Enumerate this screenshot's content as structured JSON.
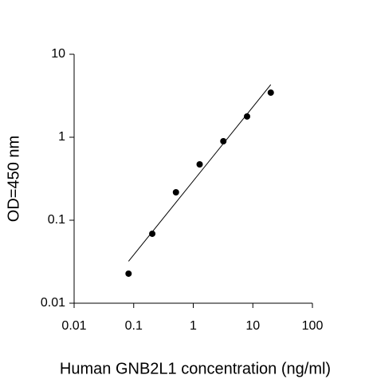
{
  "chart_data": {
    "type": "scatter",
    "xlabel": "Human GNB2L1 concentration (ng/ml)",
    "ylabel": "OD=450 nm",
    "x": [
      0.082,
      0.205,
      0.512,
      1.28,
      3.2,
      8,
      20
    ],
    "values": [
      0.0227,
      0.0687,
      0.217,
      0.471,
      0.895,
      1.78,
      3.45
    ],
    "color": "#000000",
    "fit_line": {
      "x": [
        0.082,
        20
      ],
      "y": [
        0.032,
        4.3
      ],
      "color": "#000000"
    },
    "xlim": [
      0.01,
      100
    ],
    "ylim": [
      0.01,
      10
    ],
    "xticks": [
      0.01,
      0.1,
      1,
      10,
      100
    ],
    "yticks": [
      0.01,
      0.1,
      1,
      10
    ],
    "xscale": "log",
    "yscale": "log",
    "grid": false
  }
}
